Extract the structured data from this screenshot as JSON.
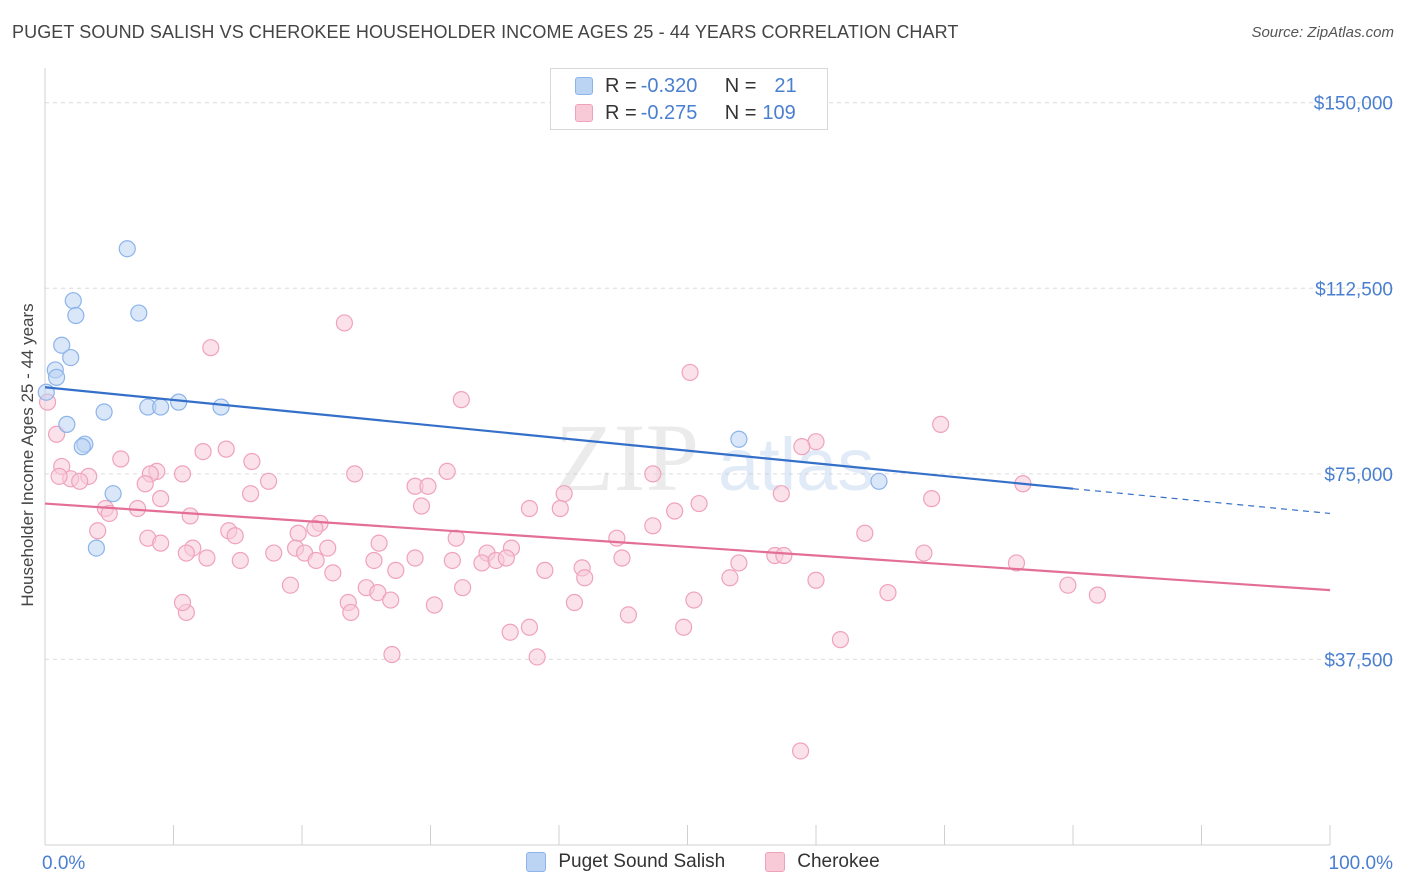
{
  "title": "PUGET SOUND SALISH VS CHEROKEE HOUSEHOLDER INCOME AGES 25 - 44 YEARS CORRELATION CHART",
  "source": "Source: ZipAtlas.com",
  "watermark": {
    "zip": "ZIP",
    "atlas": "atlas"
  },
  "legend": {
    "rows": [
      {
        "r_label": "R = ",
        "r_value": "-0.320",
        "n_label": "N = ",
        "n_value": "21"
      },
      {
        "r_label": "R = ",
        "r_value": "-0.275",
        "n_label": "N = ",
        "n_value": "109"
      }
    ]
  },
  "chart_data": {
    "type": "scatter",
    "title": "PUGET SOUND SALISH VS CHEROKEE HOUSEHOLDER INCOME AGES 25 - 44 YEARS CORRELATION CHART",
    "xlabel": "",
    "ylabel": "Householder Income Ages 25 - 44 years",
    "xlim": [
      0,
      100
    ],
    "ylim": [
      0,
      155000
    ],
    "x_tick_labels": [
      "0.0%",
      "100.0%"
    ],
    "y_ticks": [
      37500,
      75000,
      112500,
      150000
    ],
    "y_tick_labels": [
      "$37,500",
      "$75,000",
      "$112,500",
      "$150,000"
    ],
    "series": [
      {
        "name": "Puget Sound Salish",
        "color": "#8cb4ea",
        "fill": "#bcd4f4",
        "line_color": "#3470c9",
        "r": -0.32,
        "n": 21,
        "trend": {
          "x0": 0,
          "y0": 92500,
          "x1": 80,
          "y1": 72000,
          "dash_to_x": 100,
          "dash_to_y": 67000
        },
        "points": [
          [
            6.4,
            120500
          ],
          [
            2.2,
            110000
          ],
          [
            7.3,
            107500
          ],
          [
            2.4,
            107000
          ],
          [
            1.3,
            101000
          ],
          [
            2.0,
            98500
          ],
          [
            0.8,
            96000
          ],
          [
            0.9,
            94500
          ],
          [
            0.1,
            91500
          ],
          [
            10.4,
            89500
          ],
          [
            8.0,
            88500
          ],
          [
            9.0,
            88500
          ],
          [
            13.7,
            88500
          ],
          [
            4.6,
            87500
          ],
          [
            1.7,
            85000
          ],
          [
            3.1,
            81000
          ],
          [
            2.9,
            80500
          ],
          [
            54.0,
            82000
          ],
          [
            64.9,
            73500
          ],
          [
            5.3,
            71000
          ],
          [
            4.0,
            60000
          ]
        ]
      },
      {
        "name": "Cherokee",
        "color": "#f0a2bb",
        "fill": "#f8cad8",
        "line_color": "#e36e97",
        "r": -0.275,
        "n": 109,
        "trend": {
          "x0": 0,
          "y0": 69000,
          "x1": 100,
          "y1": 51500
        },
        "points": [
          [
            0.2,
            89500
          ],
          [
            23.3,
            105500
          ],
          [
            12.9,
            100500
          ],
          [
            50.2,
            95500
          ],
          [
            32.4,
            90000
          ],
          [
            69.7,
            85000
          ],
          [
            0.9,
            83000
          ],
          [
            60.0,
            81500
          ],
          [
            58.9,
            80500
          ],
          [
            12.3,
            79500
          ],
          [
            14.1,
            80000
          ],
          [
            5.9,
            78000
          ],
          [
            16.1,
            77500
          ],
          [
            1.3,
            76500
          ],
          [
            8.7,
            75500
          ],
          [
            8.2,
            75000
          ],
          [
            10.7,
            75000
          ],
          [
            24.1,
            75000
          ],
          [
            31.3,
            75500
          ],
          [
            47.3,
            75000
          ],
          [
            2.0,
            74000
          ],
          [
            3.4,
            74500
          ],
          [
            2.7,
            73500
          ],
          [
            1.1,
            74500
          ],
          [
            17.4,
            73500
          ],
          [
            7.8,
            73000
          ],
          [
            28.8,
            72500
          ],
          [
            29.8,
            72500
          ],
          [
            76.1,
            73000
          ],
          [
            16.0,
            71000
          ],
          [
            40.4,
            71000
          ],
          [
            57.3,
            71000
          ],
          [
            9.0,
            70000
          ],
          [
            69.0,
            70000
          ],
          [
            50.9,
            69000
          ],
          [
            4.7,
            68000
          ],
          [
            7.2,
            68000
          ],
          [
            5.0,
            67000
          ],
          [
            29.3,
            68500
          ],
          [
            37.7,
            68000
          ],
          [
            40.1,
            68000
          ],
          [
            49.0,
            67500
          ],
          [
            11.3,
            66500
          ],
          [
            21.4,
            65000
          ],
          [
            47.3,
            64500
          ],
          [
            21.0,
            64000
          ],
          [
            4.1,
            63500
          ],
          [
            14.3,
            63500
          ],
          [
            19.7,
            63000
          ],
          [
            63.8,
            63000
          ],
          [
            8.0,
            62000
          ],
          [
            14.8,
            62500
          ],
          [
            44.5,
            62000
          ],
          [
            26.0,
            61000
          ],
          [
            32.0,
            62000
          ],
          [
            36.3,
            60000
          ],
          [
            9.0,
            61000
          ],
          [
            11.5,
            60000
          ],
          [
            19.5,
            60000
          ],
          [
            22.0,
            60000
          ],
          [
            17.8,
            59000
          ],
          [
            20.2,
            59000
          ],
          [
            11.0,
            59000
          ],
          [
            34.4,
            59000
          ],
          [
            56.8,
            58500
          ],
          [
            57.5,
            58500
          ],
          [
            68.4,
            59000
          ],
          [
            12.6,
            58000
          ],
          [
            15.2,
            57500
          ],
          [
            25.6,
            57500
          ],
          [
            28.8,
            58000
          ],
          [
            31.7,
            57500
          ],
          [
            34.0,
            57000
          ],
          [
            35.1,
            57500
          ],
          [
            35.9,
            58000
          ],
          [
            44.9,
            58000
          ],
          [
            21.1,
            57500
          ],
          [
            41.8,
            56000
          ],
          [
            54.0,
            57000
          ],
          [
            75.6,
            57000
          ],
          [
            22.4,
            55000
          ],
          [
            27.3,
            55500
          ],
          [
            38.9,
            55500
          ],
          [
            42.0,
            54000
          ],
          [
            53.3,
            54000
          ],
          [
            60.0,
            53500
          ],
          [
            19.1,
            52500
          ],
          [
            25.0,
            52000
          ],
          [
            32.5,
            52000
          ],
          [
            65.6,
            51000
          ],
          [
            79.6,
            52500
          ],
          [
            81.9,
            50500
          ],
          [
            23.6,
            49000
          ],
          [
            25.9,
            51000
          ],
          [
            26.9,
            49500
          ],
          [
            30.3,
            48500
          ],
          [
            41.2,
            49000
          ],
          [
            50.5,
            49500
          ],
          [
            11.0,
            47000
          ],
          [
            23.8,
            47000
          ],
          [
            45.4,
            46500
          ],
          [
            37.7,
            44000
          ],
          [
            49.7,
            44000
          ],
          [
            36.2,
            43000
          ],
          [
            61.9,
            41500
          ],
          [
            27.0,
            38500
          ],
          [
            38.3,
            38000
          ],
          [
            58.8,
            19000
          ],
          [
            10.7,
            49000
          ]
        ]
      }
    ]
  },
  "bottom_legend": [
    {
      "label": "Puget Sound Salish"
    },
    {
      "label": "Cherokee"
    }
  ]
}
